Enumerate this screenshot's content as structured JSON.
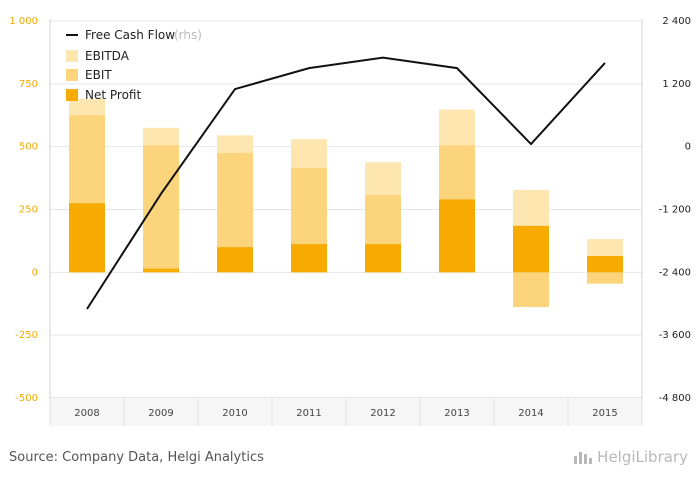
{
  "chart_data": {
    "type": "bar",
    "categories": [
      "2008",
      "2009",
      "2010",
      "2011",
      "2012",
      "2013",
      "2014",
      "2015"
    ],
    "series": [
      {
        "name": "EBITDA",
        "type": "bar",
        "axis": "left",
        "color": "#fde6b0",
        "values": [
          690,
          575,
          545,
          530,
          438,
          648,
          328,
          132
        ]
      },
      {
        "name": "EBIT",
        "type": "bar",
        "axis": "left",
        "color": "#fcd47c",
        "values": [
          625,
          505,
          475,
          415,
          308,
          505,
          -138,
          -45
        ]
      },
      {
        "name": "Net Profit",
        "type": "bar",
        "axis": "left",
        "color": "#f7aa00",
        "values": [
          275,
          15,
          100,
          112,
          112,
          290,
          185,
          65
        ]
      },
      {
        "name": "Free Cash Flow",
        "type": "line",
        "axis": "right",
        "color": "#111111",
        "values": [
          -3100,
          -900,
          1100,
          1500,
          1700,
          1500,
          50,
          1600
        ]
      }
    ],
    "legend_note": "(rhs)",
    "left_axis": {
      "range": [
        -500,
        1000
      ],
      "ticks": [
        1000,
        750,
        500,
        250,
        0,
        -250,
        -500
      ],
      "tick_labels": [
        "1 000",
        "750",
        "500",
        "250",
        "0",
        "-250",
        "-500"
      ],
      "color": "#f0a800"
    },
    "right_axis": {
      "range": [
        -4800,
        2400
      ],
      "ticks": [
        2400,
        1200,
        0,
        -1200,
        -2400,
        -3600,
        -4800
      ],
      "tick_labels": [
        "2 400",
        "1 200",
        "0",
        "-1 200",
        "-2 400",
        "-3 600",
        "-4 800"
      ]
    },
    "grid": true,
    "legend_position": "top-left",
    "source": "Source: Company Data, Helgi Analytics",
    "brand": "HelgiLibrary"
  }
}
